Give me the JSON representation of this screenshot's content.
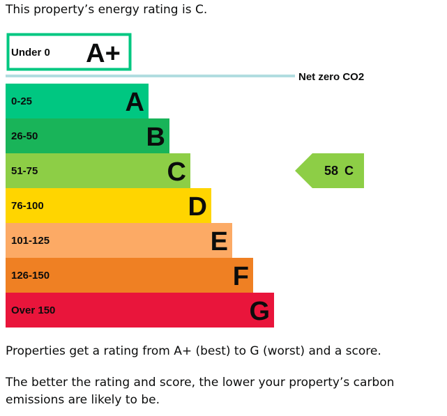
{
  "intro": "This property’s energy rating is C.",
  "rating_text": "Properties get a rating from A+ (best) to G (worst) and a score.",
  "better_text": "The better the rating and score, the lower your property’s carbon emissions are likely to be.",
  "chart_data": {
    "type": "bar",
    "net_zero_label": "Net zero CO2",
    "bands": [
      {
        "rating": "A+",
        "range": "Under 0",
        "color": "#ffffff",
        "border": "#00c781",
        "outline": true
      },
      {
        "rating": "A",
        "range": "0-25",
        "color": "#00c781"
      },
      {
        "rating": "B",
        "range": "26-50",
        "color": "#19b459"
      },
      {
        "rating": "C",
        "range": "51-75",
        "color": "#8dce46"
      },
      {
        "rating": "D",
        "range": "76-100",
        "color": "#ffd500"
      },
      {
        "rating": "E",
        "range": "101-125",
        "color": "#fcaa65"
      },
      {
        "rating": "F",
        "range": "126-150",
        "color": "#ef8023"
      },
      {
        "rating": "G",
        "range": "Over 150",
        "color": "#e9153b"
      }
    ],
    "current": {
      "score": "58",
      "rating": "C",
      "color": "#8dce46"
    }
  }
}
